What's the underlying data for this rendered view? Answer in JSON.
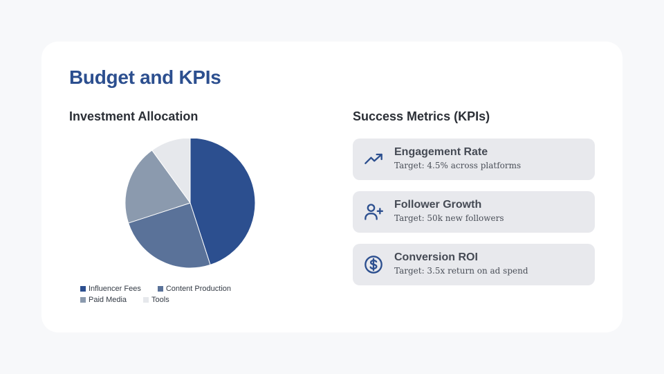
{
  "title": "Budget and KPIs",
  "left_section_title": "Investment Allocation",
  "right_section_title": "Success Metrics (KPIs)",
  "chart_data": {
    "type": "pie",
    "title": "Investment Allocation",
    "categories": [
      "Influencer Fees",
      "Content Production",
      "Paid Media",
      "Tools"
    ],
    "values": [
      45,
      25,
      20,
      10
    ],
    "colors": [
      "#2c4f8f",
      "#5a7299",
      "#8b9aae",
      "#e6e8ec"
    ],
    "legend_position": "bottom"
  },
  "kpis": [
    {
      "icon": "trending-up-icon",
      "title": "Engagement Rate",
      "subtitle": "Target: 4.5% across platforms"
    },
    {
      "icon": "user-plus-icon",
      "title": "Follower Growth",
      "subtitle": "Target: 50k new followers"
    },
    {
      "icon": "dollar-circle-icon",
      "title": "Conversion ROI",
      "subtitle": "Target: 3.5x return on ad spend"
    }
  ],
  "accent_color": "#2c4f8f"
}
